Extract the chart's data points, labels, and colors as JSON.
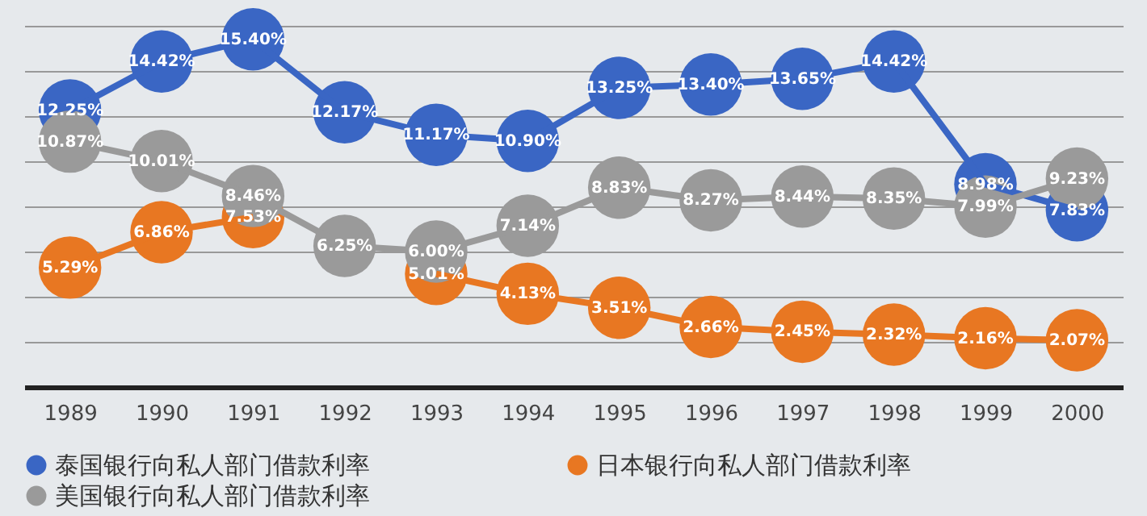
{
  "chart_data": {
    "type": "line",
    "categories": [
      "1989",
      "1990",
      "1991",
      "1992",
      "1993",
      "1994",
      "1995",
      "1996",
      "1997",
      "1998",
      "1999",
      "2000"
    ],
    "series": [
      {
        "name": "泰国银行向私人部门借款利率",
        "color": "#3a66c4",
        "values": [
          12.25,
          14.42,
          15.4,
          12.17,
          11.17,
          10.9,
          13.25,
          13.4,
          13.65,
          14.42,
          8.98,
          7.83
        ],
        "value_labels": [
          "12.25%",
          "14.42%",
          "15.40%",
          "12.17%",
          "11.17%",
          "10.90%",
          "13.25%",
          "13.40%",
          "13.65%",
          "14.42%",
          "8.98%",
          "7.83%"
        ]
      },
      {
        "name": "日本银行向私人部门借款利率",
        "color": "#e87722",
        "values": [
          5.29,
          6.86,
          7.53,
          null,
          5.01,
          4.13,
          3.51,
          2.66,
          2.45,
          2.32,
          2.16,
          2.07
        ],
        "value_labels": [
          "5.29%",
          "6.86%",
          "7.53%",
          null,
          "5.01%",
          "4.13%",
          "3.51%",
          "2.66%",
          "2.45%",
          "2.32%",
          "2.16%",
          "2.07%"
        ]
      },
      {
        "name": "美国银行向私人部门借款利率",
        "color": "#9a9a9a",
        "values": [
          10.87,
          10.01,
          8.46,
          6.25,
          6.0,
          7.14,
          8.83,
          8.27,
          8.44,
          8.35,
          7.99,
          9.23
        ],
        "value_labels": [
          "10.87%",
          "10.01%",
          "8.46%",
          "6.25%",
          "6.00%",
          "7.14%",
          "8.83%",
          "8.27%",
          "8.44%",
          "8.35%",
          "7.99%",
          "9.23%"
        ]
      }
    ],
    "grid": "y",
    "tick_labels": "x",
    "legend": "bottom",
    "marker": "circle",
    "line_style": "solid"
  }
}
